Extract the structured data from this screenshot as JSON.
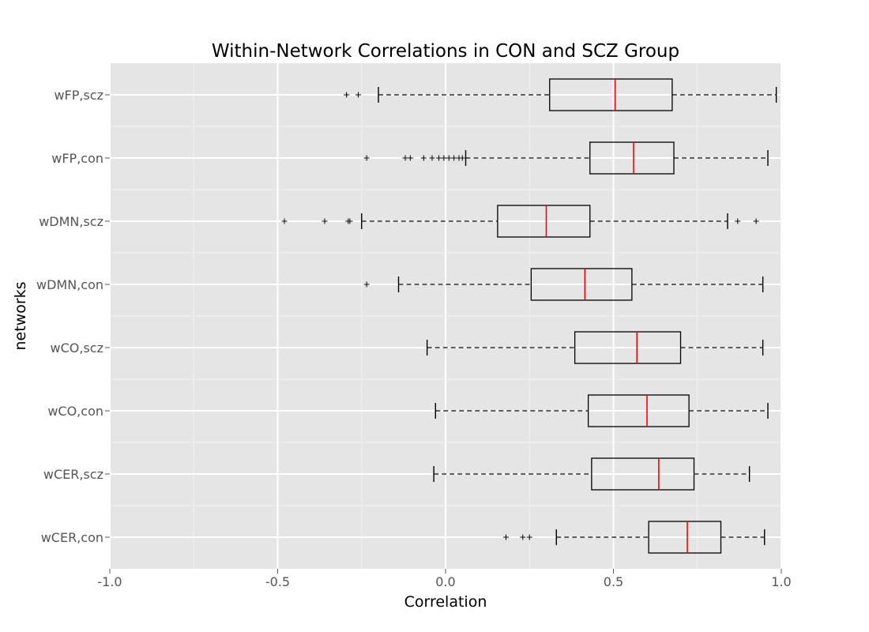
{
  "chart_data": {
    "type": "boxplot",
    "orientation": "horizontal",
    "title": "Within-Network Correlations in CON and SCZ Group",
    "xlabel": "Correlation",
    "ylabel": "networks",
    "xlim": [
      -1.0,
      1.0
    ],
    "xticks": [
      "-1.0",
      "-0.5",
      "0.0",
      "0.5",
      "1.0"
    ],
    "xtick_values": [
      -1.0,
      -0.5,
      0.0,
      0.5,
      1.0
    ],
    "grid": true,
    "median_color": "#ff0000",
    "categories": [
      "wFP,scz",
      "wFP,con",
      "wDMN,scz",
      "wDMN,con",
      "wCO,scz",
      "wCO,con",
      "wCER,scz",
      "wCER,con"
    ],
    "boxes": [
      {
        "label": "wFP,scz",
        "whisker_low": -0.2,
        "q1": 0.31,
        "median": 0.505,
        "q3": 0.675,
        "whisker_high": 0.985,
        "outliers": [
          -0.295,
          -0.26
        ]
      },
      {
        "label": "wFP,con",
        "whisker_low": 0.06,
        "q1": 0.43,
        "median": 0.56,
        "q3": 0.68,
        "whisker_high": 0.96,
        "outliers": [
          -0.235,
          -0.12,
          -0.105,
          -0.065,
          -0.04,
          -0.02,
          -0.005,
          0.01,
          0.025,
          0.04,
          0.05
        ]
      },
      {
        "label": "wDMN,scz",
        "whisker_low": -0.25,
        "q1": 0.155,
        "median": 0.3,
        "q3": 0.43,
        "whisker_high": 0.84,
        "outliers": [
          -0.48,
          -0.36,
          -0.29,
          -0.285,
          0.87,
          0.925
        ]
      },
      {
        "label": "wDMN,con",
        "whisker_low": -0.14,
        "q1": 0.255,
        "median": 0.415,
        "q3": 0.555,
        "whisker_high": 0.945,
        "outliers": [
          -0.235
        ]
      },
      {
        "label": "wCO,scz",
        "whisker_low": -0.055,
        "q1": 0.385,
        "median": 0.57,
        "q3": 0.7,
        "whisker_high": 0.945,
        "outliers": []
      },
      {
        "label": "wCO,con",
        "whisker_low": -0.03,
        "q1": 0.425,
        "median": 0.6,
        "q3": 0.725,
        "whisker_high": 0.96,
        "outliers": []
      },
      {
        "label": "wCER,scz",
        "whisker_low": -0.035,
        "q1": 0.435,
        "median": 0.635,
        "q3": 0.74,
        "whisker_high": 0.905,
        "outliers": []
      },
      {
        "label": "wCER,con",
        "whisker_low": 0.33,
        "q1": 0.605,
        "median": 0.72,
        "q3": 0.82,
        "whisker_high": 0.95,
        "outliers": [
          0.18,
          0.23,
          0.25
        ]
      }
    ]
  }
}
